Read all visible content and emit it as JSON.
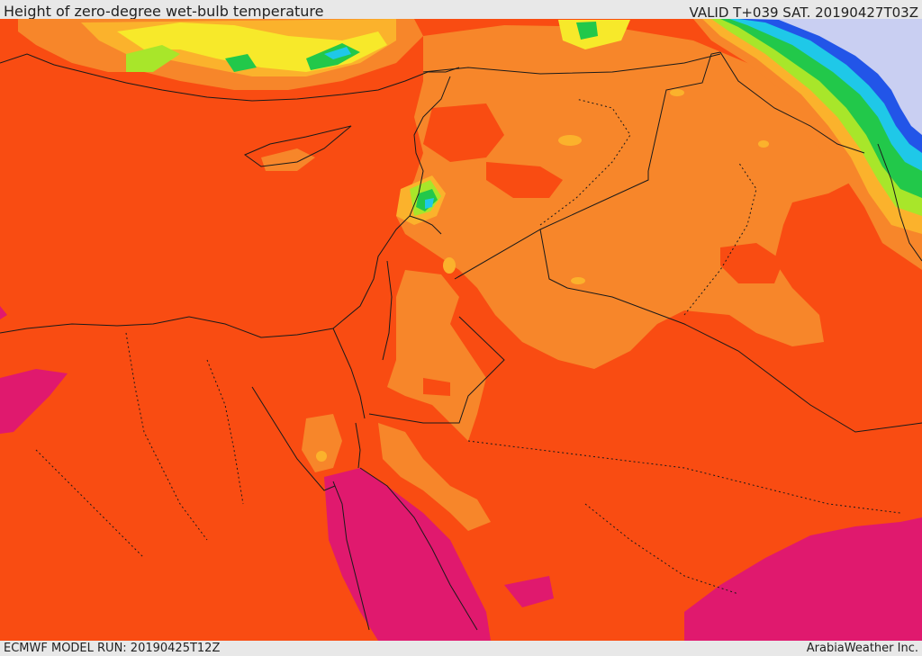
{
  "header": {
    "title": "Height of zero-degree wet-bulb temperature",
    "valid": "VALID T+039 SAT. 20190427T03Z"
  },
  "footer": {
    "model_run": "ECMWF MODEL RUN: 20190425T12Z",
    "credit": "ArabiaWeather Inc."
  },
  "colors": {
    "base": "#f94c12",
    "light_orange": "#f7862a",
    "yellow_orange": "#fbb22c",
    "yellow": "#f7e92a",
    "lime": "#a8e62a",
    "green": "#22c84a",
    "cyan": "#1fc8e8",
    "blue": "#2255e8",
    "lavender": "#c9cff2",
    "magenta": "#e0196e",
    "border": "#1a1a1a"
  }
}
